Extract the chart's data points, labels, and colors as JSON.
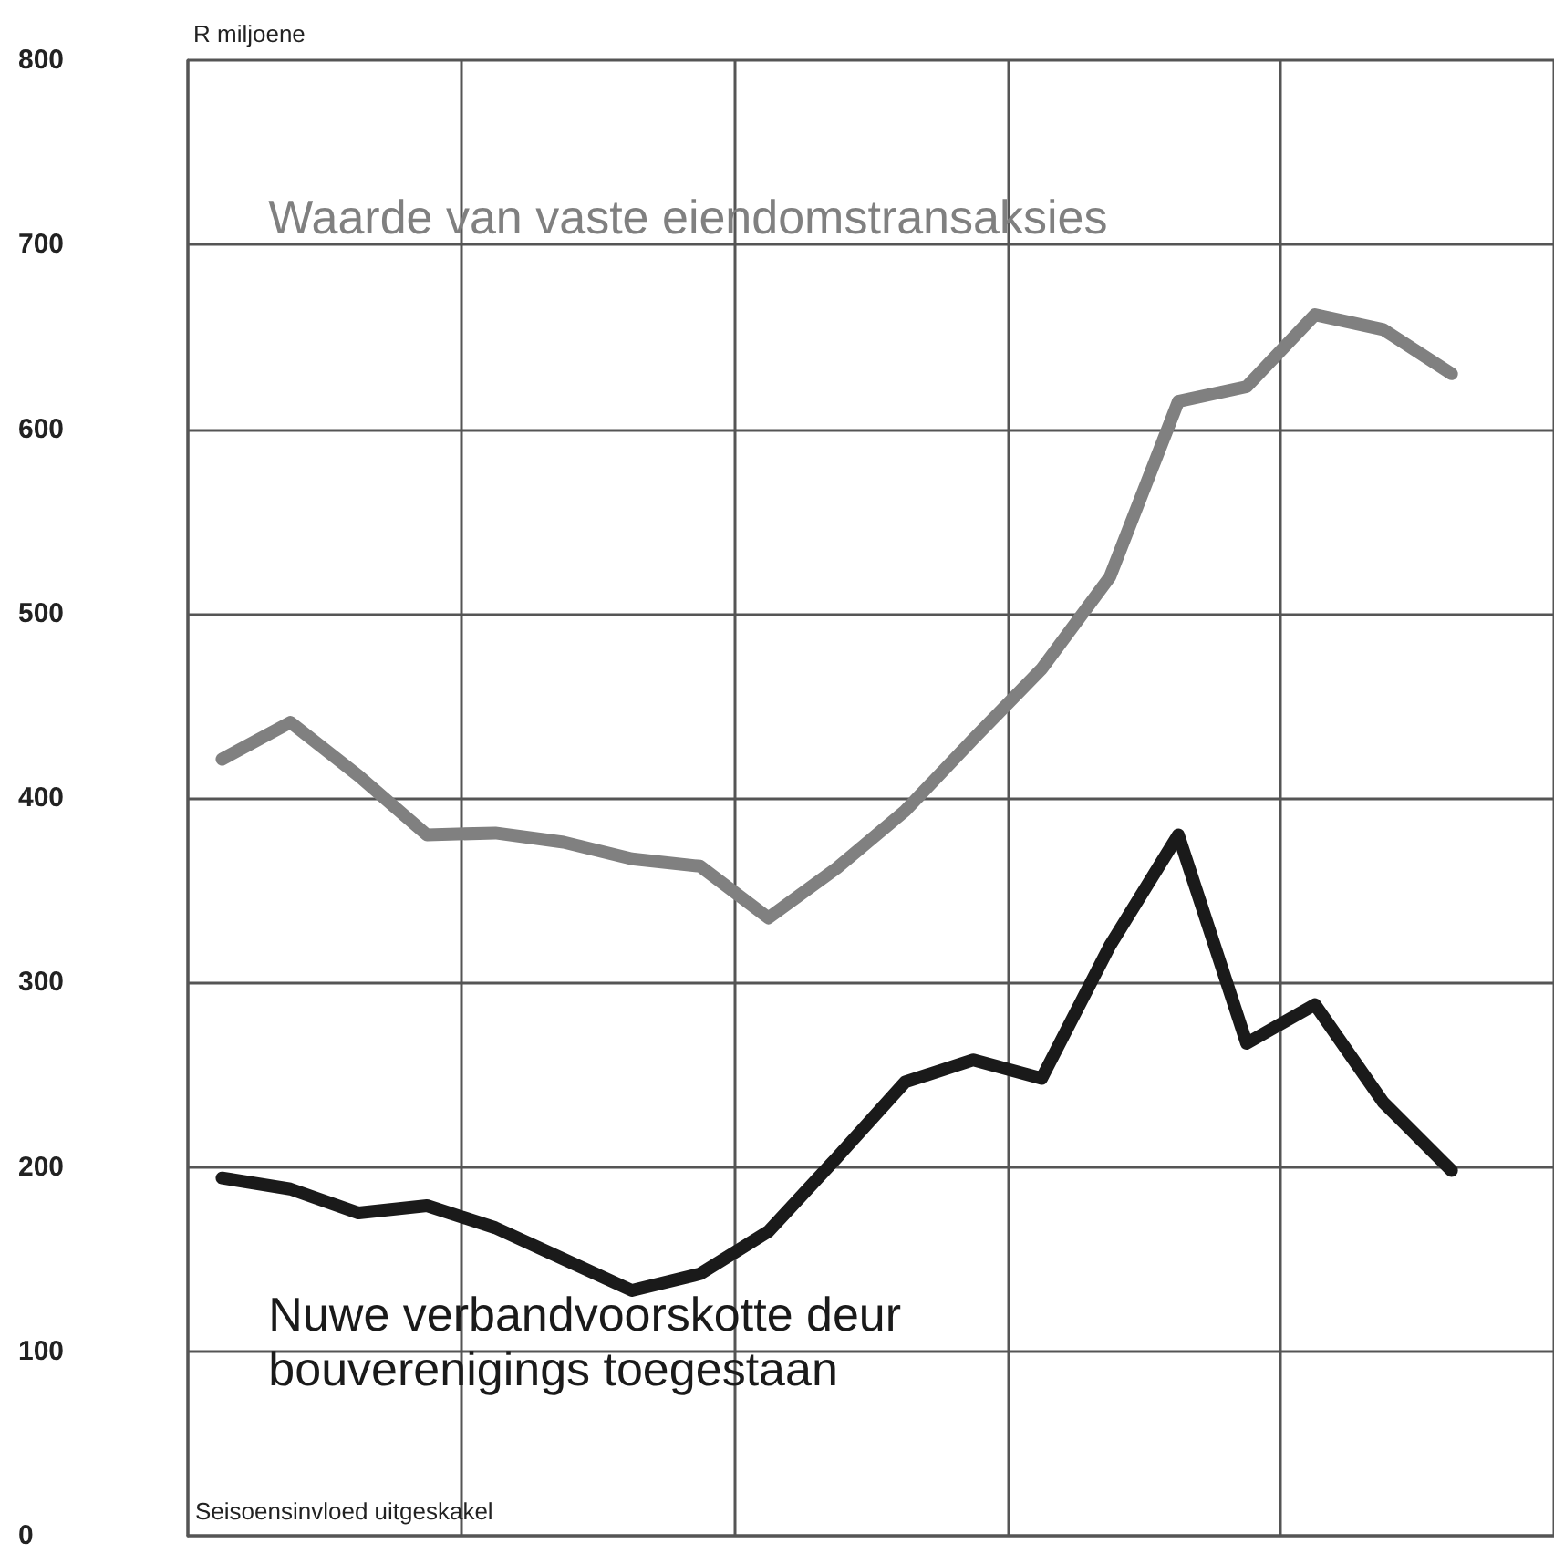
{
  "chart_data": {
    "type": "line",
    "ylabel": "R miljoene",
    "annotations": [
      "Seisoensinvloed uitgeskakel"
    ],
    "categories": [
      null,
      null,
      null,
      null,
      null,
      null,
      null,
      null,
      null,
      null,
      null,
      null,
      null,
      null,
      null,
      null,
      null,
      null,
      null,
      null
    ],
    "series": [
      {
        "name": "Waarde van vaste eiendomstransaksies",
        "color": "#808080",
        "values": [
          421,
          441,
          412,
          380,
          381,
          376,
          367,
          363,
          335,
          362,
          393,
          432,
          470,
          520,
          615,
          623,
          662,
          654,
          630,
          null
        ]
      },
      {
        "name": "Nuwe verbandvoorskotte deur bouverenigings toegestaan",
        "color": "#1a1a1a",
        "values": [
          194,
          188,
          175,
          179,
          167,
          150,
          133,
          142,
          165,
          205,
          246,
          258,
          248,
          320,
          380,
          267,
          288,
          235,
          198,
          null
        ]
      }
    ],
    "ylim": [
      0,
      800
    ],
    "yticks": [
      0,
      100,
      200,
      300,
      400,
      500,
      600,
      700,
      800
    ],
    "grid": true,
    "legend": false,
    "line_style": "solid"
  }
}
